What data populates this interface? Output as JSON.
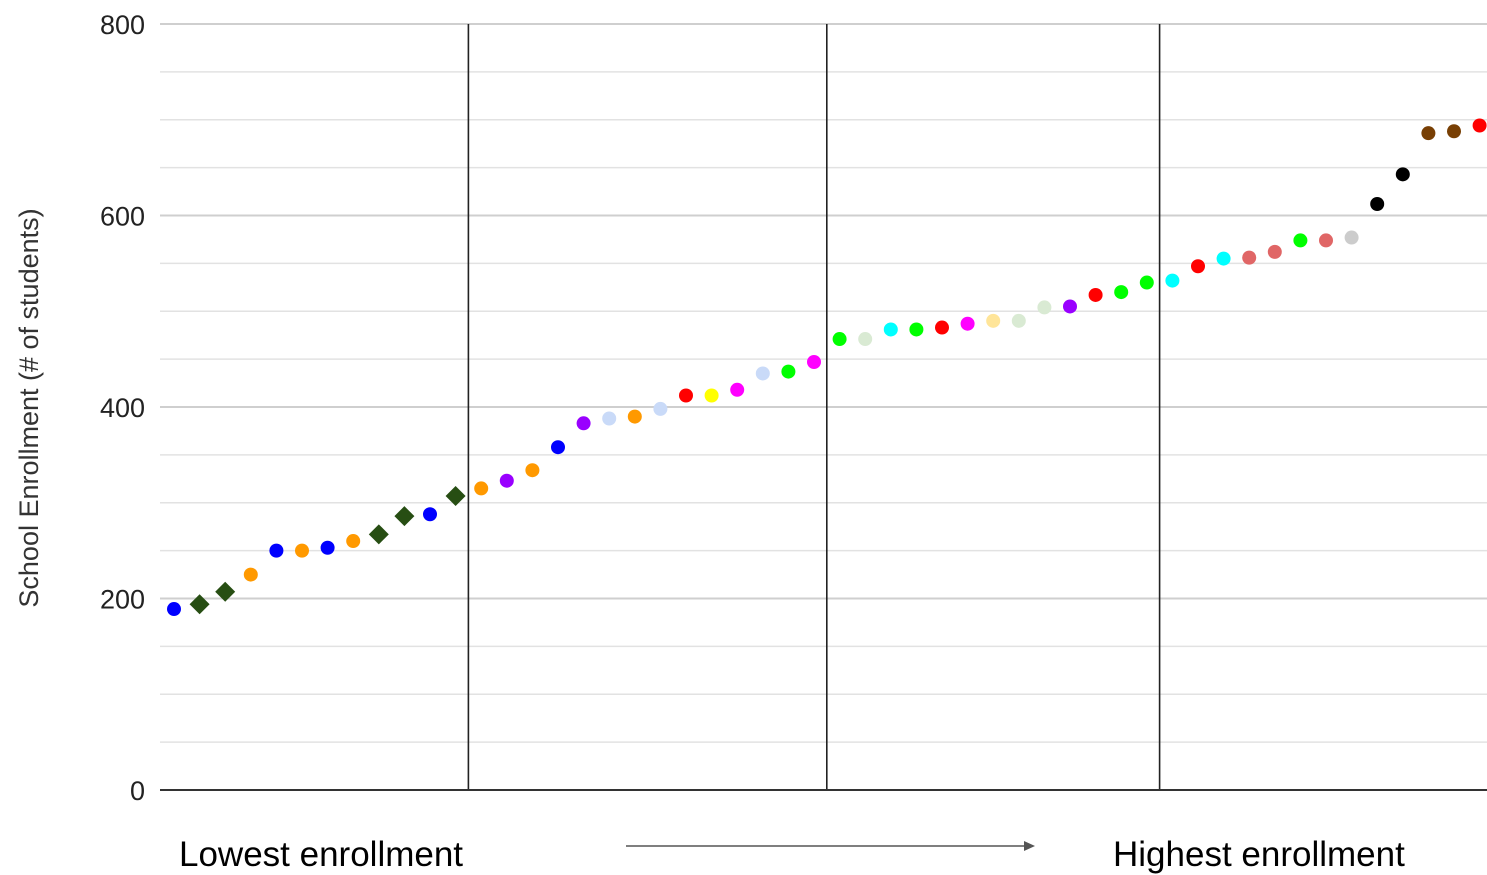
{
  "chart_data": {
    "type": "scatter",
    "title": "",
    "xlabel": "",
    "ylabel": "School Enrollment (#  of students)",
    "ylim": [
      0,
      800
    ],
    "y_ticks": [
      0,
      200,
      400,
      600,
      800
    ],
    "y_gridlines_step": 50,
    "grid": true,
    "bottom_labels": {
      "left": "Lowest enrollment",
      "right": "Highest enrollment"
    },
    "x_order_arrow": true,
    "group_dividers_after_point": [
      11.5,
      25.5,
      38.5
    ],
    "points": [
      {
        "y": 189,
        "color": "#0000ff",
        "marker": "circle"
      },
      {
        "y": 194,
        "color": "#274e13",
        "marker": "diamond"
      },
      {
        "y": 207,
        "color": "#274e13",
        "marker": "diamond"
      },
      {
        "y": 225,
        "color": "#ff9900",
        "marker": "circle"
      },
      {
        "y": 250,
        "color": "#0000ff",
        "marker": "circle"
      },
      {
        "y": 250,
        "color": "#ff9900",
        "marker": "circle"
      },
      {
        "y": 253,
        "color": "#0000ff",
        "marker": "circle"
      },
      {
        "y": 260,
        "color": "#ff9900",
        "marker": "circle"
      },
      {
        "y": 267,
        "color": "#274e13",
        "marker": "diamond"
      },
      {
        "y": 286,
        "color": "#274e13",
        "marker": "diamond"
      },
      {
        "y": 288,
        "color": "#0000ff",
        "marker": "circle"
      },
      {
        "y": 307,
        "color": "#274e13",
        "marker": "diamond"
      },
      {
        "y": 315,
        "color": "#ff9900",
        "marker": "circle"
      },
      {
        "y": 323,
        "color": "#9900ff",
        "marker": "circle"
      },
      {
        "y": 334,
        "color": "#ff9900",
        "marker": "circle"
      },
      {
        "y": 358,
        "color": "#0000ff",
        "marker": "circle"
      },
      {
        "y": 383,
        "color": "#9900ff",
        "marker": "circle"
      },
      {
        "y": 388,
        "color": "#c9daf8",
        "marker": "circle"
      },
      {
        "y": 390,
        "color": "#ff9900",
        "marker": "circle"
      },
      {
        "y": 398,
        "color": "#c9daf8",
        "marker": "circle"
      },
      {
        "y": 412,
        "color": "#ff0000",
        "marker": "circle"
      },
      {
        "y": 412,
        "color": "#ffff00",
        "marker": "circle"
      },
      {
        "y": 418,
        "color": "#ff00ff",
        "marker": "circle"
      },
      {
        "y": 435,
        "color": "#c9daf8",
        "marker": "circle"
      },
      {
        "y": 437,
        "color": "#00ff00",
        "marker": "circle"
      },
      {
        "y": 447,
        "color": "#ff00ff",
        "marker": "circle"
      },
      {
        "y": 471,
        "color": "#00ff00",
        "marker": "circle"
      },
      {
        "y": 471,
        "color": "#d9ead3",
        "marker": "circle"
      },
      {
        "y": 481,
        "color": "#00ffff",
        "marker": "circle"
      },
      {
        "y": 481,
        "color": "#00ff00",
        "marker": "circle"
      },
      {
        "y": 483,
        "color": "#ff0000",
        "marker": "circle"
      },
      {
        "y": 487,
        "color": "#ff00ff",
        "marker": "circle"
      },
      {
        "y": 490,
        "color": "#ffe599",
        "marker": "circle"
      },
      {
        "y": 490,
        "color": "#d9ead3",
        "marker": "circle"
      },
      {
        "y": 504,
        "color": "#d9ead3",
        "marker": "circle"
      },
      {
        "y": 505,
        "color": "#9900ff",
        "marker": "circle"
      },
      {
        "y": 517,
        "color": "#ff0000",
        "marker": "circle"
      },
      {
        "y": 520,
        "color": "#00ff00",
        "marker": "circle"
      },
      {
        "y": 530,
        "color": "#00ff00",
        "marker": "circle"
      },
      {
        "y": 532,
        "color": "#00ffff",
        "marker": "circle"
      },
      {
        "y": 547,
        "color": "#ff0000",
        "marker": "circle"
      },
      {
        "y": 555,
        "color": "#00ffff",
        "marker": "circle"
      },
      {
        "y": 556,
        "color": "#e06666",
        "marker": "circle"
      },
      {
        "y": 562,
        "color": "#e06666",
        "marker": "circle"
      },
      {
        "y": 574,
        "color": "#00ff00",
        "marker": "circle"
      },
      {
        "y": 574,
        "color": "#e06666",
        "marker": "circle"
      },
      {
        "y": 577,
        "color": "#cccccc",
        "marker": "circle"
      },
      {
        "y": 612,
        "color": "#000000",
        "marker": "circle"
      },
      {
        "y": 643,
        "color": "#000000",
        "marker": "circle"
      },
      {
        "y": 686,
        "color": "#783f04",
        "marker": "circle"
      },
      {
        "y": 688,
        "color": "#783f04",
        "marker": "circle"
      },
      {
        "y": 694,
        "color": "#ff0000",
        "marker": "circle"
      }
    ]
  }
}
